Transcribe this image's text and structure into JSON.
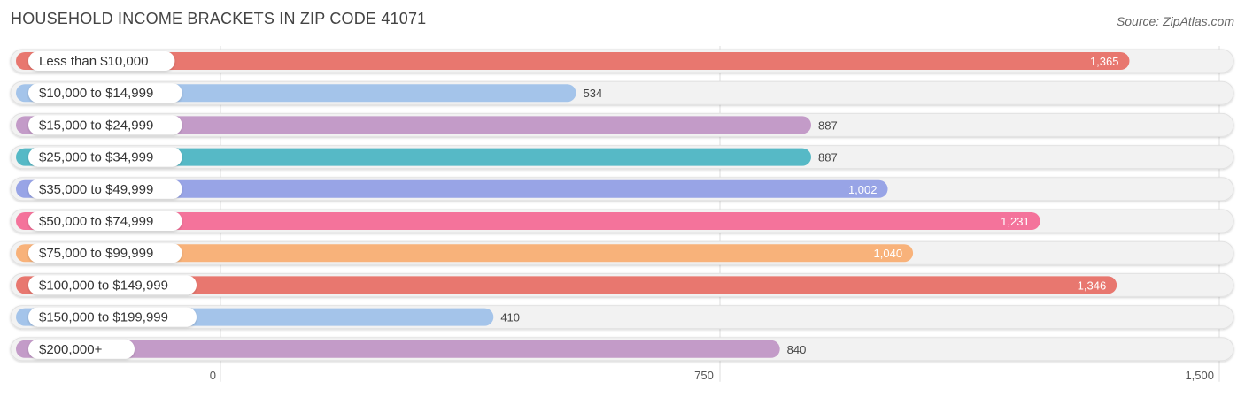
{
  "title": "HOUSEHOLD INCOME BRACKETS IN ZIP CODE 41071",
  "source": "Source: ZipAtlas.com",
  "chart_data": {
    "type": "bar",
    "orientation": "horizontal",
    "title": "HOUSEHOLD INCOME BRACKETS IN ZIP CODE 41071",
    "categories": [
      "Less than $10,000",
      "$10,000 to $14,999",
      "$15,000 to $24,999",
      "$25,000 to $34,999",
      "$35,000 to $49,999",
      "$50,000 to $74,999",
      "$75,000 to $99,999",
      "$100,000 to $149,999",
      "$150,000 to $199,999",
      "$200,000+"
    ],
    "values": [
      1365,
      534,
      887,
      887,
      1002,
      1231,
      1040,
      1346,
      410,
      840
    ],
    "value_labels": [
      "1,365",
      "534",
      "887",
      "887",
      "1,002",
      "1,231",
      "1,040",
      "1,346",
      "410",
      "840"
    ],
    "colors": [
      "#e8776f",
      "#a4c4ea",
      "#c39bc8",
      "#56b9c6",
      "#98a4e6",
      "#f4739b",
      "#f8b27a",
      "#e8776f",
      "#a4c4ea",
      "#c39bc8"
    ],
    "xlim": [
      0,
      1500
    ],
    "ticks": [
      0,
      750,
      1500
    ],
    "tick_labels": [
      "0",
      "750",
      "1,500"
    ],
    "grid": true
  }
}
